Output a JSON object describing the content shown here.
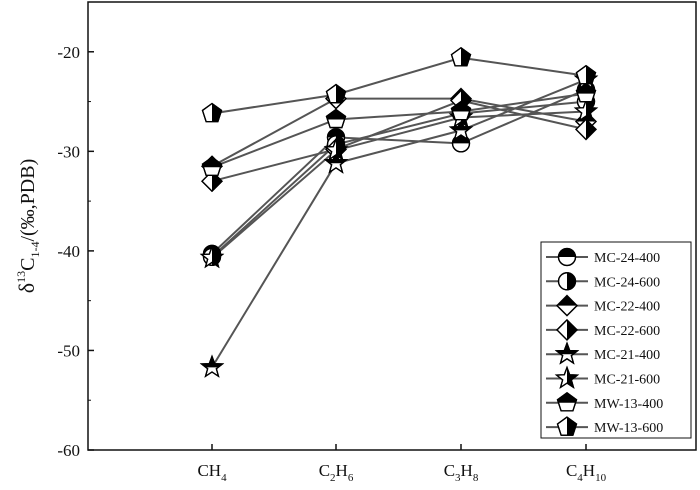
{
  "chart_data": {
    "type": "line",
    "categories": [
      {
        "main": "CH",
        "sub": "4"
      },
      {
        "main": "C",
        "sub": "2",
        "main2": "H",
        "sub2": "6"
      },
      {
        "main": "C",
        "sub": "3",
        "main2": "H",
        "sub2": "8"
      },
      {
        "main": "C",
        "sub": "4",
        "main2": "H",
        "sub2": "10"
      }
    ],
    "ylabel": {
      "delta": "δ",
      "sup": "13",
      "c": "C",
      "sub": "1-4",
      "rest": "/(‰,PDB)"
    },
    "ylim": [
      -60,
      -15
    ],
    "yticks": [
      -60,
      -50,
      -40,
      -30,
      -20
    ],
    "ytick_labels": [
      "-60",
      "-50",
      "-40",
      "-30",
      "-20"
    ],
    "grid": false,
    "legend_position": "bottom-right",
    "line_color": "#555555",
    "marker_color": "#000000",
    "series": [
      {
        "name": "MC-24-400",
        "marker": "circle-full",
        "values": [
          -40.3,
          -28.6,
          -29.2,
          -23.8
        ]
      },
      {
        "name": "MC-24-600",
        "marker": "circle-half",
        "values": [
          -40.6,
          -29.3,
          -26.2,
          -25.0
        ]
      },
      {
        "name": "MC-22-400",
        "marker": "diamond-full",
        "values": [
          -31.5,
          -24.7,
          -24.7,
          -27.0
        ]
      },
      {
        "name": "MC-22-600",
        "marker": "diamond-half",
        "values": [
          -33.0,
          -29.8,
          -24.9,
          -27.8
        ]
      },
      {
        "name": "MC-21-400",
        "marker": "star-full",
        "values": [
          -51.7,
          -31.2,
          -27.9,
          -22.8
        ]
      },
      {
        "name": "MC-21-600",
        "marker": "star-half",
        "values": [
          -40.7,
          -29.9,
          -26.6,
          -26.0
        ]
      },
      {
        "name": "MW-13-400",
        "marker": "pentagon-full",
        "values": [
          -31.6,
          -26.8,
          -26.0,
          -24.2
        ]
      },
      {
        "name": "MW-13-600",
        "marker": "pentagon-half",
        "values": [
          -26.2,
          -24.3,
          -20.6,
          -22.4
        ]
      }
    ]
  }
}
